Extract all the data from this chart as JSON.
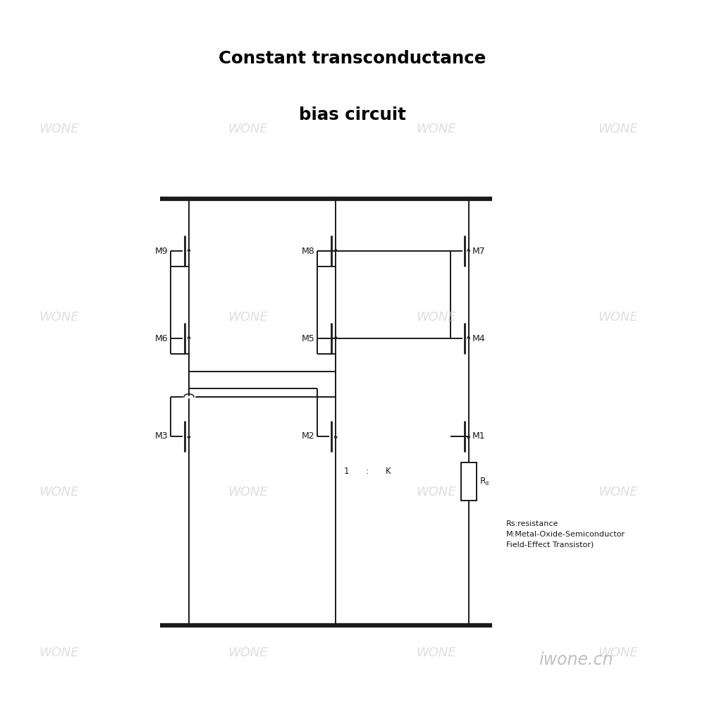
{
  "title_line1": "Constant transconductance",
  "title_line2": "bias circuit",
  "title_fontsize": 42,
  "background_color": "#ffffff",
  "line_color": "#1a1a1a",
  "watermark_color": "#c8c8c8",
  "watermark_text": "WONE",
  "legend_text": "Rs:resistance\nM:Metal-Oxide-Semiconductor\nField-Effect Transistor)",
  "iwone_text": "iwone.cn",
  "ratio_1": "1",
  "ratio_colon": ":",
  "ratio_K": "K"
}
